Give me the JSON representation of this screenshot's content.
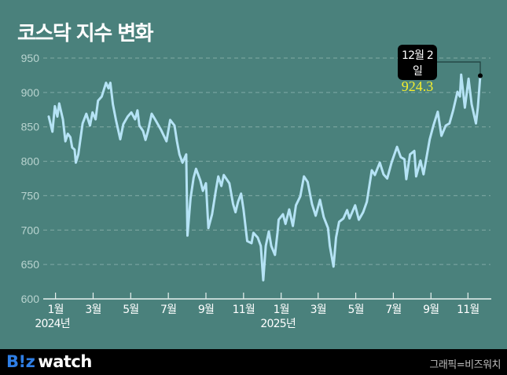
{
  "title": "코스닥 지수 변화",
  "footer": {
    "logo_brand": "B!z",
    "logo_word": "watch",
    "credit": "그래픽=비즈워치"
  },
  "colors": {
    "background": "#4a817c",
    "line": "#b5e3f5",
    "grid": "#8fb5b0",
    "axis_text": "#b9d4d0",
    "logo_accent": "#2f7fe6",
    "highlight_value": "#f5ee2c"
  },
  "chart_data": {
    "type": "line",
    "title": "코스닥 지수 변화",
    "xlabel": "",
    "ylabel": "",
    "ylim": [
      600,
      950
    ],
    "yticks": [
      600,
      650,
      700,
      750,
      800,
      850,
      900,
      950
    ],
    "grid": true,
    "xrange": [
      "2024-01-02",
      "2025-12-02"
    ],
    "xticks": [
      {
        "date": "2024-01-13",
        "label": "1월",
        "year": "2024년"
      },
      {
        "date": "2024-03-14",
        "label": "3월"
      },
      {
        "date": "2024-05-14",
        "label": "5월"
      },
      {
        "date": "2024-07-14",
        "label": "7월"
      },
      {
        "date": "2024-09-13",
        "label": "9월"
      },
      {
        "date": "2024-11-13",
        "label": "11월"
      },
      {
        "date": "2025-01-13",
        "label": "1월",
        "year": "2025년"
      },
      {
        "date": "2025-03-14",
        "label": "3월"
      },
      {
        "date": "2025-05-14",
        "label": "5월"
      },
      {
        "date": "2025-07-14",
        "label": "7월"
      },
      {
        "date": "2025-09-13",
        "label": "9월"
      },
      {
        "date": "2025-11-12",
        "label": "11월"
      }
    ],
    "annotation": {
      "date": "2025-12-02",
      "label": "12월 2일",
      "value": "924.3"
    },
    "points": [
      [
        "2024-01-02",
        865
      ],
      [
        "2024-01-08",
        843
      ],
      [
        "2024-01-12",
        880
      ],
      [
        "2024-01-16",
        865
      ],
      [
        "2024-01-19",
        884
      ],
      [
        "2024-01-25",
        861
      ],
      [
        "2024-01-29",
        829
      ],
      [
        "2024-02-02",
        840
      ],
      [
        "2024-02-06",
        835
      ],
      [
        "2024-02-09",
        820
      ],
      [
        "2024-02-13",
        817
      ],
      [
        "2024-02-15",
        798
      ],
      [
        "2024-02-19",
        810
      ],
      [
        "2024-02-26",
        855
      ],
      [
        "2024-03-03",
        869
      ],
      [
        "2024-03-09",
        852
      ],
      [
        "2024-03-13",
        871
      ],
      [
        "2024-03-18",
        861
      ],
      [
        "2024-03-22",
        888
      ],
      [
        "2024-03-28",
        894
      ],
      [
        "2024-04-04",
        914
      ],
      [
        "2024-04-08",
        906
      ],
      [
        "2024-04-11",
        914
      ],
      [
        "2024-04-15",
        883
      ],
      [
        "2024-04-20",
        860
      ],
      [
        "2024-04-27",
        832
      ],
      [
        "2024-05-02",
        854
      ],
      [
        "2024-05-09",
        865
      ],
      [
        "2024-05-15",
        871
      ],
      [
        "2024-05-21",
        861
      ],
      [
        "2024-05-25",
        874
      ],
      [
        "2024-05-28",
        852
      ],
      [
        "2024-06-03",
        844
      ],
      [
        "2024-06-07",
        831
      ],
      [
        "2024-06-11",
        844
      ],
      [
        "2024-06-17",
        869
      ],
      [
        "2024-06-23",
        860
      ],
      [
        "2024-07-02",
        846
      ],
      [
        "2024-07-11",
        829
      ],
      [
        "2024-07-17",
        860
      ],
      [
        "2024-07-24",
        852
      ],
      [
        "2024-07-28",
        829
      ],
      [
        "2024-08-01",
        810
      ],
      [
        "2024-08-06",
        798
      ],
      [
        "2024-08-12",
        810
      ],
      [
        "2024-08-14",
        692
      ],
      [
        "2024-08-19",
        746
      ],
      [
        "2024-08-24",
        776
      ],
      [
        "2024-08-28",
        789
      ],
      [
        "2024-09-04",
        772
      ],
      [
        "2024-09-08",
        757
      ],
      [
        "2024-09-13",
        768
      ],
      [
        "2024-09-17",
        703
      ],
      [
        "2024-09-23",
        723
      ],
      [
        "2024-09-29",
        757
      ],
      [
        "2024-10-03",
        778
      ],
      [
        "2024-10-08",
        764
      ],
      [
        "2024-10-12",
        780
      ],
      [
        "2024-10-21",
        768
      ],
      [
        "2024-10-27",
        738
      ],
      [
        "2024-10-31",
        726
      ],
      [
        "2024-11-04",
        741
      ],
      [
        "2024-11-09",
        753
      ],
      [
        "2024-11-13",
        730
      ],
      [
        "2024-11-19",
        684
      ],
      [
        "2024-11-26",
        681
      ],
      [
        "2024-11-29",
        696
      ],
      [
        "2024-12-06",
        689
      ],
      [
        "2024-12-11",
        677
      ],
      [
        "2024-12-15",
        627
      ],
      [
        "2024-12-19",
        677
      ],
      [
        "2024-12-24",
        698
      ],
      [
        "2024-12-28",
        677
      ],
      [
        "2025-01-03",
        664
      ],
      [
        "2025-01-07",
        696
      ],
      [
        "2025-01-09",
        715
      ],
      [
        "2025-01-16",
        723
      ],
      [
        "2025-01-20",
        709
      ],
      [
        "2025-01-26",
        730
      ],
      [
        "2025-02-01",
        706
      ],
      [
        "2025-02-06",
        736
      ],
      [
        "2025-02-13",
        749
      ],
      [
        "2025-02-19",
        778
      ],
      [
        "2025-02-25",
        770
      ],
      [
        "2025-03-04",
        738
      ],
      [
        "2025-03-10",
        721
      ],
      [
        "2025-03-17",
        744
      ],
      [
        "2025-03-23",
        719
      ],
      [
        "2025-03-30",
        703
      ],
      [
        "2025-04-02",
        677
      ],
      [
        "2025-04-08",
        647
      ],
      [
        "2025-04-12",
        689
      ],
      [
        "2025-04-17",
        712
      ],
      [
        "2025-04-24",
        717
      ],
      [
        "2025-04-30",
        729
      ],
      [
        "2025-05-04",
        717
      ],
      [
        "2025-05-13",
        736
      ],
      [
        "2025-05-19",
        715
      ],
      [
        "2025-05-26",
        726
      ],
      [
        "2025-06-01",
        741
      ],
      [
        "2025-06-09",
        787
      ],
      [
        "2025-06-14",
        780
      ],
      [
        "2025-06-22",
        798
      ],
      [
        "2025-06-28",
        781
      ],
      [
        "2025-07-04",
        775
      ],
      [
        "2025-07-11",
        798
      ],
      [
        "2025-07-20",
        821
      ],
      [
        "2025-07-26",
        806
      ],
      [
        "2025-08-01",
        803
      ],
      [
        "2025-08-04",
        774
      ],
      [
        "2025-08-10",
        810
      ],
      [
        "2025-08-17",
        815
      ],
      [
        "2025-08-20",
        778
      ],
      [
        "2025-08-27",
        801
      ],
      [
        "2025-09-01",
        781
      ],
      [
        "2025-09-11",
        832
      ],
      [
        "2025-09-17",
        852
      ],
      [
        "2025-09-24",
        872
      ],
      [
        "2025-09-30",
        837
      ],
      [
        "2025-10-07",
        852
      ],
      [
        "2025-10-13",
        855
      ],
      [
        "2025-10-19",
        874
      ],
      [
        "2025-10-26",
        901
      ],
      [
        "2025-10-30",
        894
      ],
      [
        "2025-11-01",
        926
      ],
      [
        "2025-11-07",
        878
      ],
      [
        "2025-11-13",
        920
      ],
      [
        "2025-11-18",
        883
      ],
      [
        "2025-11-25",
        855
      ],
      [
        "2025-11-28",
        878
      ],
      [
        "2025-12-02",
        924.3
      ]
    ]
  }
}
